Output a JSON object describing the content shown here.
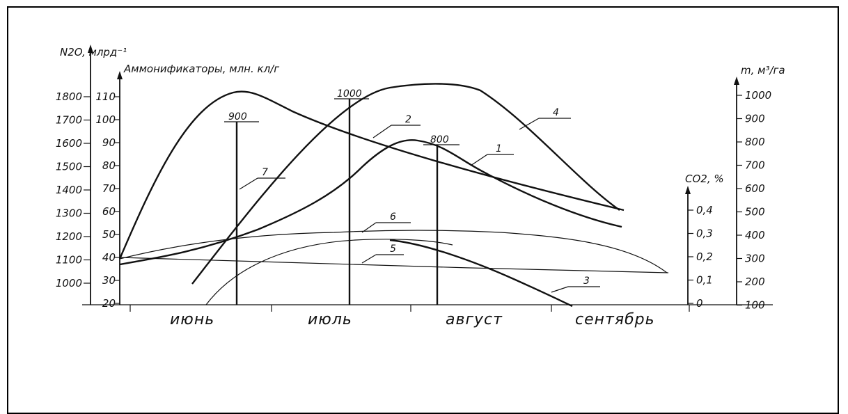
{
  "chart_data": {
    "type": "line",
    "x_categories": [
      "июнь",
      "июль",
      "август",
      "сентябрь"
    ],
    "axes": {
      "n2o": {
        "title": "N2O, млрд⁻¹",
        "ticks": [
          "1800",
          "1700",
          "1600",
          "1500",
          "1400",
          "1300",
          "1200",
          "1100",
          "1000"
        ]
      },
      "ammonifiers": {
        "title": "Аммонификаторы, млн. кл/г",
        "ticks": [
          "110",
          "100",
          "90",
          "80",
          "70",
          "60",
          "50",
          "40",
          "30",
          "20"
        ]
      },
      "co2": {
        "title": "CO2, %",
        "ticks": [
          "0,4",
          "0,3",
          "0,2",
          "0,1",
          "0"
        ]
      },
      "m": {
        "title": "m, м³/га",
        "ticks": [
          "1000",
          "900",
          "800",
          "700",
          "600",
          "500",
          "400",
          "300",
          "200",
          "100"
        ]
      }
    },
    "bar_markers": [
      {
        "label": "900"
      },
      {
        "label": "1000"
      },
      {
        "label": "800"
      }
    ],
    "series": [
      {
        "name": "1"
      },
      {
        "name": "2"
      },
      {
        "name": "3"
      },
      {
        "name": "4"
      },
      {
        "name": "5"
      },
      {
        "name": "6"
      },
      {
        "name": "7"
      }
    ]
  },
  "colors": {
    "ink": "#111111",
    "background": "#ffffff"
  }
}
